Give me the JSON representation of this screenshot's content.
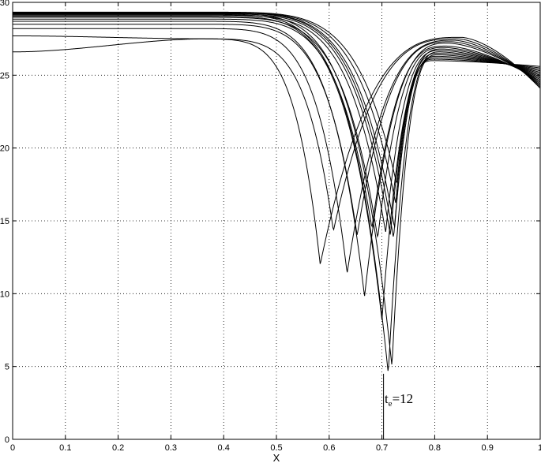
{
  "chart_data": {
    "type": "line",
    "title": "",
    "xlabel": "X",
    "ylabel": "",
    "xlim": [
      0,
      1
    ],
    "ylim": [
      0,
      30
    ],
    "x_ticks": [
      "0",
      "0.1",
      "0.2",
      "0.3",
      "0.4",
      "0.5",
      "0.6",
      "0.7",
      "0.8",
      "0.9",
      "1"
    ],
    "y_ticks": [
      "0",
      "5",
      "10",
      "15",
      "20",
      "25",
      "30"
    ],
    "grid": true,
    "legend": "none",
    "line_color": "#000000",
    "annotation": {
      "base": "t",
      "subscript": "e",
      "rest": "=12",
      "x": 0.705,
      "y": 2.5
    },
    "vertical_line": {
      "x": 0.703,
      "y_from": 0,
      "y_to": 4.5
    },
    "series_params": [
      {
        "p": 26.6,
        "r": 0.583,
        "m": 12.0,
        "pk": 27.6,
        "pp": 0.85
      },
      {
        "p": 27.7,
        "r": 0.608,
        "m": 14.3,
        "pk": 27.5,
        "pp": 0.843
      },
      {
        "p": 28.2,
        "r": 0.634,
        "m": 11.4,
        "pk": 27.4,
        "pp": 0.837
      },
      {
        "p": 28.5,
        "r": 0.653,
        "m": 14.0,
        "pk": 27.3,
        "pp": 0.831
      },
      {
        "p": 28.7,
        "r": 0.667,
        "m": 9.8,
        "pk": 27.2,
        "pp": 0.826
      },
      {
        "p": 28.85,
        "r": 0.681,
        "m": 14.5,
        "pk": 27.0,
        "pp": 0.822
      },
      {
        "p": 28.97,
        "r": 0.692,
        "m": 13.8,
        "pk": 26.9,
        "pp": 0.818
      },
      {
        "p": 29.05,
        "r": 0.7,
        "m": 8.2,
        "pk": 26.8,
        "pp": 0.815
      },
      {
        "p": 29.12,
        "r": 0.707,
        "m": 14.2,
        "pk": 26.7,
        "pp": 0.812
      },
      {
        "p": 29.17,
        "r": 0.712,
        "m": 4.5,
        "pk": 26.6,
        "pp": 0.81
      },
      {
        "p": 29.21,
        "r": 0.716,
        "m": 14.0,
        "pk": 26.5,
        "pp": 0.808
      },
      {
        "p": 29.24,
        "r": 0.719,
        "m": 5.0,
        "pk": 26.4,
        "pp": 0.806
      },
      {
        "p": 29.27,
        "r": 0.722,
        "m": 13.8,
        "pk": 26.3,
        "pp": 0.804
      },
      {
        "p": 29.29,
        "r": 0.724,
        "m": 14.5,
        "pk": 26.2,
        "pp": 0.802
      },
      {
        "p": 29.31,
        "r": 0.726,
        "m": 16.2,
        "pk": 26.1,
        "pp": 0.8
      },
      {
        "p": 29.33,
        "r": 0.728,
        "m": 17.5,
        "pk": 26.0,
        "pp": 0.798
      }
    ],
    "end_values": [
      24.1,
      24.2,
      24.3,
      24.4,
      24.5,
      24.6,
      24.7,
      24.8,
      24.9,
      25.0,
      25.1,
      25.2,
      25.3,
      25.4,
      25.5,
      25.6
    ]
  }
}
